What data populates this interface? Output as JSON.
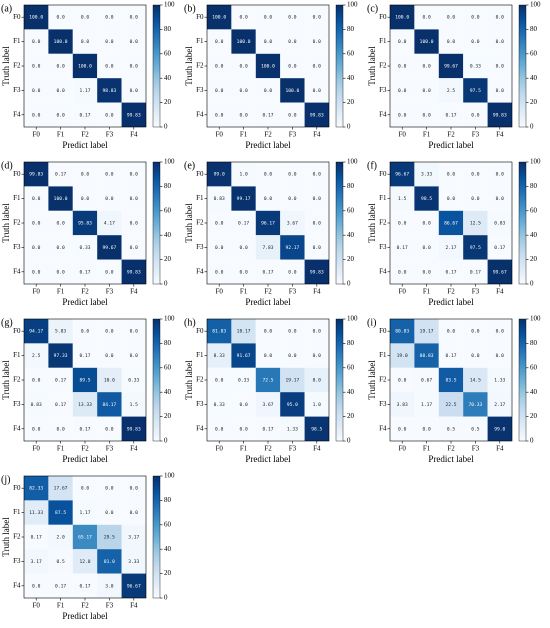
{
  "chart_data": [
    {
      "type": "heatmap",
      "label": "(a)",
      "xlabel": "Predict label",
      "ylabel": "Truth label",
      "x_categories": [
        "F0",
        "F1",
        "F2",
        "F3",
        "F4"
      ],
      "y_categories": [
        "F0",
        "F1",
        "F2",
        "F3",
        "F4"
      ],
      "values": [
        [
          100.0,
          0,
          0,
          0,
          0
        ],
        [
          0,
          100.0,
          0,
          0,
          0
        ],
        [
          0,
          0,
          100.0,
          0,
          0
        ],
        [
          0,
          0,
          1.17,
          98.83,
          0
        ],
        [
          0,
          0,
          0.17,
          0,
          99.83
        ]
      ],
      "value_labels": [
        [
          "100.0",
          "0.0",
          "0.0",
          "0.0",
          "0.0"
        ],
        [
          "0.0",
          "100.0",
          "0.0",
          "0.0",
          "0.0"
        ],
        [
          "0.0",
          "0.0",
          "100.0",
          "0.0",
          "0.0"
        ],
        [
          "0.0",
          "0.0",
          "1.17",
          "98.83",
          "0.0"
        ],
        [
          "0.0",
          "0.0",
          "0.17",
          "0.0",
          "99.83"
        ]
      ],
      "colormap": "Blues",
      "clim": [
        0,
        100
      ],
      "cticks": [
        0,
        20,
        40,
        60,
        80,
        100
      ]
    },
    {
      "type": "heatmap",
      "label": "(b)",
      "xlabel": "Predict label",
      "ylabel": "Truth label",
      "x_categories": [
        "F0",
        "F1",
        "F2",
        "F3",
        "F4"
      ],
      "y_categories": [
        "F0",
        "F1",
        "F2",
        "F3",
        "F4"
      ],
      "values": [
        [
          100.0,
          0,
          0,
          0,
          0
        ],
        [
          0,
          100.0,
          0,
          0,
          0
        ],
        [
          0,
          0,
          100.0,
          0,
          0
        ],
        [
          0,
          0,
          0,
          100.0,
          0
        ],
        [
          0,
          0,
          0.17,
          0,
          99.83
        ]
      ],
      "value_labels": [
        [
          "100.0",
          "0.0",
          "0.0",
          "0.0",
          "0.0"
        ],
        [
          "0.0",
          "100.0",
          "0.0",
          "0.0",
          "0.0"
        ],
        [
          "0.0",
          "0.0",
          "100.0",
          "0.0",
          "0.0"
        ],
        [
          "0.0",
          "0.0",
          "0.0",
          "100.0",
          "0.0"
        ],
        [
          "0.0",
          "0.0",
          "0.17",
          "0.0",
          "99.83"
        ]
      ],
      "colormap": "Blues",
      "clim": [
        0,
        100
      ],
      "cticks": [
        0,
        20,
        40,
        60,
        80,
        100
      ]
    },
    {
      "type": "heatmap",
      "label": "(c)",
      "xlabel": "Predict label",
      "ylabel": "Truth label",
      "x_categories": [
        "F0",
        "F1",
        "F2",
        "F3",
        "F4"
      ],
      "y_categories": [
        "F0",
        "F1",
        "F2",
        "F3",
        "F4"
      ],
      "values": [
        [
          100.0,
          0,
          0,
          0,
          0
        ],
        [
          0,
          100.0,
          0,
          0,
          0
        ],
        [
          0,
          0,
          99.67,
          0.33,
          0
        ],
        [
          0,
          0,
          2.5,
          97.5,
          0
        ],
        [
          0,
          0,
          0.17,
          0,
          99.83
        ]
      ],
      "value_labels": [
        [
          "100.0",
          "0.0",
          "0.0",
          "0.0",
          "0.0"
        ],
        [
          "0.0",
          "100.0",
          "0.0",
          "0.0",
          "0.0"
        ],
        [
          "0.0",
          "0.0",
          "99.67",
          "0.33",
          "0.0"
        ],
        [
          "0.0",
          "0.0",
          "2.5",
          "97.5",
          "0.0"
        ],
        [
          "0.0",
          "0.0",
          "0.17",
          "0.0",
          "99.83"
        ]
      ],
      "colormap": "Blues",
      "clim": [
        0,
        100
      ],
      "cticks": [
        0,
        20,
        40,
        60,
        80,
        100
      ]
    },
    {
      "type": "heatmap",
      "label": "(d)",
      "xlabel": "Predict label",
      "ylabel": "Truth label",
      "x_categories": [
        "F0",
        "F1",
        "F2",
        "F3",
        "F4"
      ],
      "y_categories": [
        "F0",
        "F1",
        "F2",
        "F3",
        "F4"
      ],
      "values": [
        [
          99.83,
          0.17,
          0,
          0,
          0
        ],
        [
          0,
          100.0,
          0,
          0,
          0
        ],
        [
          0,
          0,
          95.83,
          4.17,
          0
        ],
        [
          0,
          0,
          0.33,
          99.67,
          0
        ],
        [
          0,
          0,
          0.17,
          0,
          99.83
        ]
      ],
      "value_labels": [
        [
          "99.83",
          "0.17",
          "0.0",
          "0.0",
          "0.0"
        ],
        [
          "0.0",
          "100.0",
          "0.0",
          "0.0",
          "0.0"
        ],
        [
          "0.0",
          "0.0",
          "95.83",
          "4.17",
          "0.0"
        ],
        [
          "0.0",
          "0.0",
          "0.33",
          "99.67",
          "0.0"
        ],
        [
          "0.0",
          "0.0",
          "0.17",
          "0.0",
          "99.83"
        ]
      ],
      "colormap": "Blues",
      "clim": [
        0,
        100
      ],
      "cticks": [
        0,
        20,
        40,
        60,
        80,
        100
      ]
    },
    {
      "type": "heatmap",
      "label": "(e)",
      "xlabel": "Predict label",
      "ylabel": "Truth label",
      "x_categories": [
        "F0",
        "F1",
        "F2",
        "F3",
        "F4"
      ],
      "y_categories": [
        "F0",
        "F1",
        "F2",
        "F3",
        "F4"
      ],
      "values": [
        [
          99.0,
          1.0,
          0,
          0,
          0
        ],
        [
          0.83,
          99.17,
          0,
          0,
          0
        ],
        [
          0,
          0.17,
          96.17,
          3.67,
          0
        ],
        [
          0,
          0,
          7.83,
          92.17,
          0
        ],
        [
          0,
          0,
          0.17,
          0,
          99.83
        ]
      ],
      "value_labels": [
        [
          "99.0",
          "1.0",
          "0.0",
          "0.0",
          "0.0"
        ],
        [
          "0.83",
          "99.17",
          "0.0",
          "0.0",
          "0.0"
        ],
        [
          "0.0",
          "0.17",
          "96.17",
          "3.67",
          "0.0"
        ],
        [
          "0.0",
          "0.0",
          "7.83",
          "92.17",
          "0.0"
        ],
        [
          "0.0",
          "0.0",
          "0.17",
          "0.0",
          "99.83"
        ]
      ],
      "colormap": "Blues",
      "clim": [
        0,
        100
      ],
      "cticks": [
        0,
        20,
        40,
        60,
        80,
        100
      ]
    },
    {
      "type": "heatmap",
      "label": "(f)",
      "xlabel": "Predict label",
      "ylabel": "Truth label",
      "x_categories": [
        "F0",
        "F1",
        "F2",
        "F3",
        "F4"
      ],
      "y_categories": [
        "F0",
        "F1",
        "F2",
        "F3",
        "F4"
      ],
      "values": [
        [
          96.67,
          3.33,
          0,
          0,
          0
        ],
        [
          1.5,
          98.5,
          0,
          0,
          0
        ],
        [
          0,
          0,
          86.67,
          12.5,
          0.83
        ],
        [
          0.17,
          0,
          2.17,
          97.5,
          0.17
        ],
        [
          0,
          0,
          0.17,
          0.17,
          99.67
        ]
      ],
      "value_labels": [
        [
          "96.67",
          "3.33",
          "0.0",
          "0.0",
          "0.0"
        ],
        [
          "1.5",
          "98.5",
          "0.0",
          "0.0",
          "0.0"
        ],
        [
          "0.0",
          "0.0",
          "86.67",
          "12.5",
          "0.83"
        ],
        [
          "0.17",
          "0.0",
          "2.17",
          "97.5",
          "0.17"
        ],
        [
          "0.0",
          "0.0",
          "0.17",
          "0.17",
          "99.67"
        ]
      ],
      "colormap": "Blues",
      "clim": [
        0,
        100
      ],
      "cticks": [
        0,
        20,
        40,
        60,
        80,
        100
      ]
    },
    {
      "type": "heatmap",
      "label": "(g)",
      "xlabel": "Predict label",
      "ylabel": "Truth label",
      "x_categories": [
        "F0",
        "F1",
        "F2",
        "F3",
        "F4"
      ],
      "y_categories": [
        "F0",
        "F1",
        "F2",
        "F3",
        "F4"
      ],
      "values": [
        [
          94.17,
          5.83,
          0,
          0,
          0
        ],
        [
          2.5,
          97.33,
          0.17,
          0,
          0
        ],
        [
          0,
          0.17,
          89.5,
          10.0,
          0.33
        ],
        [
          0.83,
          0.17,
          13.33,
          84.17,
          1.5
        ],
        [
          0,
          0,
          0.17,
          0,
          99.83
        ]
      ],
      "value_labels": [
        [
          "94.17",
          "5.83",
          "0.0",
          "0.0",
          "0.0"
        ],
        [
          "2.5",
          "97.33",
          "0.17",
          "0.0",
          "0.0"
        ],
        [
          "0.0",
          "0.17",
          "89.5",
          "10.0",
          "0.33"
        ],
        [
          "0.83",
          "0.17",
          "13.33",
          "84.17",
          "1.5"
        ],
        [
          "0.0",
          "0.0",
          "0.17",
          "0.0",
          "99.83"
        ]
      ],
      "colormap": "Blues",
      "clim": [
        0,
        100
      ],
      "cticks": [
        0,
        20,
        40,
        60,
        80,
        100
      ]
    },
    {
      "type": "heatmap",
      "label": "(h)",
      "xlabel": "Predict label",
      "ylabel": "Truth label",
      "x_categories": [
        "F0",
        "F1",
        "F2",
        "F3",
        "F4"
      ],
      "y_categories": [
        "F0",
        "F1",
        "F2",
        "F3",
        "F4"
      ],
      "values": [
        [
          81.83,
          18.17,
          0,
          0,
          0
        ],
        [
          8.33,
          91.67,
          0,
          0,
          0
        ],
        [
          0,
          0.33,
          72.5,
          19.17,
          8.0
        ],
        [
          0.33,
          0,
          3.67,
          95.0,
          1.0
        ],
        [
          0,
          0,
          0.17,
          1.33,
          98.5
        ]
      ],
      "value_labels": [
        [
          "81.83",
          "18.17",
          "0.0",
          "0.0",
          "0.0"
        ],
        [
          "8.33",
          "91.67",
          "0.0",
          "0.0",
          "0.0"
        ],
        [
          "0.0",
          "0.33",
          "72.5",
          "19.17",
          "8.0"
        ],
        [
          "0.33",
          "0.0",
          "3.67",
          "95.0",
          "1.0"
        ],
        [
          "0.0",
          "0.0",
          "0.17",
          "1.33",
          "98.5"
        ]
      ],
      "colormap": "Blues",
      "clim": [
        0,
        100
      ],
      "cticks": [
        0,
        20,
        40,
        60,
        80,
        100
      ]
    },
    {
      "type": "heatmap",
      "label": "(i)",
      "xlabel": "Predict label",
      "ylabel": "Truth label",
      "x_categories": [
        "F0",
        "F1",
        "F2",
        "F3",
        "F4"
      ],
      "y_categories": [
        "F0",
        "F1",
        "F2",
        "F3",
        "F4"
      ],
      "values": [
        [
          80.83,
          19.17,
          0,
          0,
          0
        ],
        [
          19.0,
          80.83,
          0.17,
          0,
          0
        ],
        [
          0,
          0.67,
          83.5,
          14.5,
          1.33
        ],
        [
          3.83,
          1.17,
          22.5,
          70.33,
          2.17
        ],
        [
          0,
          0,
          0.5,
          0.5,
          99.0
        ]
      ],
      "value_labels": [
        [
          "80.83",
          "19.17",
          "0.0",
          "0.0",
          "0.0"
        ],
        [
          "19.0",
          "80.83",
          "0.17",
          "0.0",
          "0.0"
        ],
        [
          "0.0",
          "0.67",
          "83.5",
          "14.5",
          "1.33"
        ],
        [
          "3.83",
          "1.17",
          "22.5",
          "70.33",
          "2.17"
        ],
        [
          "0.0",
          "0.0",
          "0.5",
          "0.5",
          "99.0"
        ]
      ],
      "colormap": "Blues",
      "clim": [
        0,
        100
      ],
      "cticks": [
        0,
        20,
        40,
        60,
        80,
        100
      ]
    },
    {
      "type": "heatmap",
      "label": "(j)",
      "xlabel": "Predict label",
      "ylabel": "Truth label",
      "x_categories": [
        "F0",
        "F1",
        "F2",
        "F3",
        "F4"
      ],
      "y_categories": [
        "F0",
        "F1",
        "F2",
        "F3",
        "F4"
      ],
      "values": [
        [
          82.33,
          17.67,
          0,
          0,
          0
        ],
        [
          11.33,
          87.5,
          1.17,
          0,
          0
        ],
        [
          0.17,
          2.0,
          65.17,
          29.5,
          3.17
        ],
        [
          3.17,
          0.5,
          12.0,
          81.0,
          3.33
        ],
        [
          0,
          0.17,
          0.17,
          3.0,
          96.67
        ]
      ],
      "value_labels": [
        [
          "82.33",
          "17.67",
          "0.0",
          "0.0",
          "0.0"
        ],
        [
          "11.33",
          "87.5",
          "1.17",
          "0.0",
          "0.0"
        ],
        [
          "0.17",
          "2.0",
          "65.17",
          "29.5",
          "3.17"
        ],
        [
          "3.17",
          "0.5",
          "12.0",
          "81.0",
          "3.33"
        ],
        [
          "0.0",
          "0.17",
          "0.17",
          "3.0",
          "96.67"
        ]
      ],
      "colormap": "Blues",
      "clim": [
        0,
        100
      ],
      "cticks": [
        0,
        20,
        40,
        60,
        80,
        100
      ]
    }
  ]
}
